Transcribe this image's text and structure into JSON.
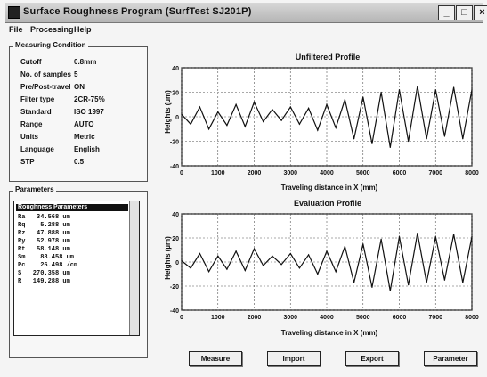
{
  "window": {
    "title": "Surface Roughness Program (SurfTest SJ201P)"
  },
  "menu": [
    "File",
    "Processing",
    "Help"
  ],
  "measuring_conditions": {
    "group_title": "Measuring Condition",
    "rows": [
      {
        "key": "Cutoff",
        "value": "0.8mm"
      },
      {
        "key": "No. of samples",
        "value": "5"
      },
      {
        "key": "Pre/Post-travel",
        "value": "ON"
      },
      {
        "key": "Filter type",
        "value": "2CR-75%"
      },
      {
        "key": "Standard",
        "value": "ISO 1997"
      },
      {
        "key": "Range",
        "value": "AUTO"
      },
      {
        "key": "Units",
        "value": "Metric"
      },
      {
        "key": "Language",
        "value": "English"
      },
      {
        "key": "STP",
        "value": "0.5"
      }
    ]
  },
  "parameters": {
    "group_title": "Parameters",
    "list_header": "Roughness Parameters",
    "items": [
      "Ra   34.568 um",
      "Rq    5.288 um",
      "Rz   47.888 um",
      "Ry   52.978 um",
      "Rt   58.148 um",
      "Sm    88.458 um",
      "Pc    26.498 /cm",
      "S   270.358 um",
      "R   149.288 um"
    ]
  },
  "charts": [
    {
      "title": "Unfiltered Profile",
      "xlabel": "Traveling distance in X (mm)",
      "ylabel": "Heights (µm)",
      "y_ticks": [
        "40",
        "20",
        "0",
        "-20",
        "-40"
      ],
      "x_ticks": [
        "0",
        "1000",
        "2000",
        "3000",
        "4000",
        "5000",
        "6000",
        "7000",
        "8000"
      ]
    },
    {
      "title": "Evaluation Profile",
      "xlabel": "Traveling distance in X (mm)",
      "ylabel": "Heights (µm)",
      "y_ticks": [
        "40",
        "20",
        "0",
        "-20",
        "-40"
      ],
      "x_ticks": [
        "0",
        "1000",
        "2000",
        "3000",
        "4000",
        "5000",
        "6000",
        "7000",
        "8000"
      ]
    }
  ],
  "chart_data": [
    {
      "type": "line",
      "title": "Unfiltered Profile",
      "xlabel": "Traveling distance in X (mm)",
      "ylabel": "Heights (µm)",
      "xlim": [
        0,
        8000
      ],
      "ylim": [
        -40,
        40
      ],
      "grid": true,
      "series": [
        {
          "x": [
            0,
            250,
            500,
            750,
            1000,
            1250,
            1500,
            1750,
            2000,
            2250,
            2500,
            2750,
            3000,
            3250,
            3500,
            3750,
            4000,
            4250,
            4500,
            4750,
            5000,
            5250,
            5500,
            5750,
            6000,
            6250,
            6500,
            6750,
            7000,
            7250,
            7500,
            7750,
            8000
          ],
          "values": [
            2,
            -6,
            8,
            -10,
            4,
            -7,
            10,
            -8,
            12,
            -4,
            6,
            -3,
            8,
            -6,
            7,
            -11,
            10,
            -9,
            14,
            -18,
            16,
            -22,
            20,
            -25,
            22,
            -20,
            25,
            -18,
            22,
            -16,
            24,
            -18,
            22
          ]
        }
      ]
    },
    {
      "type": "line",
      "title": "Evaluation Profile",
      "xlabel": "Traveling distance in X (mm)",
      "ylabel": "Heights (µm)",
      "xlim": [
        0,
        8000
      ],
      "ylim": [
        -40,
        40
      ],
      "grid": true,
      "series": [
        {
          "x": [
            0,
            250,
            500,
            750,
            1000,
            1250,
            1500,
            1750,
            2000,
            2250,
            2500,
            2750,
            3000,
            3250,
            3500,
            3750,
            4000,
            4250,
            4500,
            4750,
            5000,
            5250,
            5500,
            5750,
            6000,
            6250,
            6500,
            6750,
            7000,
            7250,
            7500,
            7750,
            8000
          ],
          "values": [
            1,
            -5,
            7,
            -8,
            5,
            -6,
            9,
            -7,
            11,
            -3,
            5,
            -2,
            7,
            -5,
            6,
            -10,
            9,
            -8,
            13,
            -17,
            15,
            -21,
            19,
            -24,
            21,
            -19,
            24,
            -17,
            21,
            -15,
            23,
            -17,
            21
          ]
        }
      ]
    }
  ],
  "buttons": [
    "Measure",
    "Import",
    "Export",
    "Parameter"
  ]
}
